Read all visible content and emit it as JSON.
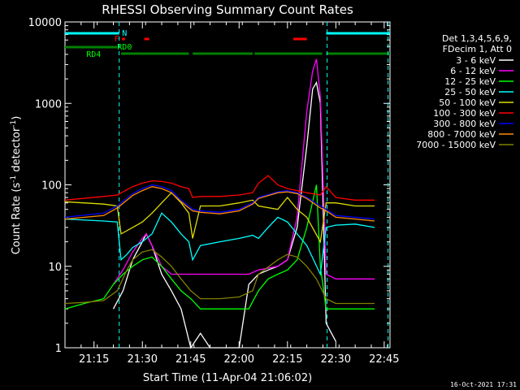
{
  "chart_data": {
    "type": "line",
    "title": "RHESSI Observing Summary Count Rates",
    "xlabel": "Start Time (11-Apr-04 21:06:02)",
    "ylabel_main": "Count Rate (s",
    "ylabel_sup1": "-1",
    "ylabel_mid": " detector",
    "ylabel_sup2": "-1",
    "ylabel_end": ")",
    "yscale": "log",
    "ylim": [
      1,
      10000
    ],
    "xlim_minutes": [
      21.1,
      22.78
    ],
    "xtick_labels": [
      "21:15",
      "21:30",
      "21:45",
      "22:00",
      "22:15",
      "22:30",
      "22:45"
    ],
    "xtick_values": [
      21.25,
      21.5,
      21.75,
      22.0,
      22.25,
      22.5,
      22.75
    ],
    "ytick_labels": [
      "1",
      "10",
      "100",
      "1000",
      "10000"
    ],
    "ytick_values": [
      1,
      10,
      100,
      1000,
      10000
    ],
    "legend_header": [
      "Det 1,3,4,5,6,9,",
      "FDecim 1, Att 0"
    ],
    "footer_date": "16-Oct-2021 17:31",
    "flags": {
      "N_label": "N",
      "F_label": "F",
      "RD0_label": "RD0",
      "RD4_label": "RD4",
      "night_color": "#00ffff",
      "flare_color": "#ff0000",
      "decim_color": "#008000",
      "night_segments": [
        [
          21.1,
          21.38
        ],
        [
          22.45,
          22.78
        ]
      ],
      "flare_segments": [
        [
          21.395,
          21.41
        ],
        [
          21.51,
          21.535
        ],
        [
          22.28,
          22.35
        ]
      ],
      "rd_segments": [
        [
          21.1,
          21.37
        ],
        [
          21.39,
          21.74
        ],
        [
          21.76,
          22.07
        ],
        [
          22.08,
          22.43
        ],
        [
          22.45,
          22.78
        ]
      ],
      "dashed_vlines": [
        21.38,
        22.455,
        22.77
      ]
    },
    "series": [
      {
        "name": "3 - 6 keV",
        "color": "#ffffff",
        "x": [
          21.1,
          21.2,
          21.3,
          21.35,
          21.4,
          21.45,
          21.5,
          21.52,
          21.55,
          21.6,
          21.65,
          21.7,
          21.75,
          21.8,
          21.85,
          21.9,
          22.0,
          22.05,
          22.1,
          22.15,
          22.2,
          22.25,
          22.3,
          22.35,
          22.38,
          22.4,
          22.42,
          22.45,
          22.5
        ],
        "y": [
          null,
          null,
          null,
          3,
          5,
          12,
          20,
          25,
          18,
          8,
          5,
          3,
          1,
          1.5,
          1,
          1,
          1,
          6,
          8,
          9,
          10,
          12,
          30,
          300,
          1500,
          1800,
          1000,
          2,
          1.2
        ]
      },
      {
        "name": "6 - 12 keV",
        "color": "#ff00ff",
        "x": [
          21.1,
          21.3,
          21.35,
          21.4,
          21.45,
          21.5,
          21.52,
          21.55,
          21.6,
          21.65,
          21.7,
          21.75,
          21.8,
          22.0,
          22.05,
          22.1,
          22.2,
          22.25,
          22.3,
          22.35,
          22.38,
          22.4,
          22.42,
          22.45,
          22.5,
          22.6,
          22.7
        ],
        "y": [
          null,
          null,
          6,
          9,
          15,
          22,
          25,
          18,
          10,
          8,
          8,
          8,
          8,
          8,
          8,
          9,
          10,
          12,
          40,
          800,
          2500,
          3500,
          1200,
          8,
          7,
          7,
          7
        ]
      },
      {
        "name": "12 - 25 keV",
        "color": "#00ff00",
        "x": [
          21.1,
          21.2,
          21.3,
          21.35,
          21.4,
          21.45,
          21.5,
          21.55,
          21.6,
          21.65,
          21.7,
          21.75,
          21.8,
          21.9,
          22.0,
          22.05,
          22.1,
          22.15,
          22.2,
          22.25,
          22.3,
          22.35,
          22.4,
          22.42,
          22.45,
          22.5,
          22.7
        ],
        "y": [
          3,
          3.5,
          4,
          6,
          8,
          10,
          12,
          13,
          10,
          7,
          5,
          4,
          3,
          3,
          3,
          3,
          5,
          7,
          8,
          9,
          12,
          30,
          100,
          10,
          3,
          3,
          3
        ]
      },
      {
        "name": "25 - 50 keV",
        "color": "#00ffff",
        "x": [
          21.1,
          21.3,
          21.37,
          21.39,
          21.42,
          21.45,
          21.5,
          21.55,
          21.6,
          21.65,
          21.7,
          21.74,
          21.76,
          21.8,
          21.9,
          22.0,
          22.07,
          22.1,
          22.15,
          22.2,
          22.25,
          22.3,
          22.35,
          22.42,
          22.45,
          22.5,
          22.6,
          22.7
        ],
        "y": [
          38,
          36,
          35,
          12,
          14,
          17,
          20,
          25,
          45,
          35,
          25,
          20,
          12,
          18,
          20,
          22,
          24,
          22,
          30,
          40,
          35,
          25,
          18,
          8,
          30,
          32,
          33,
          30
        ]
      },
      {
        "name": "50 - 100 keV",
        "color": "#dddd00",
        "x": [
          21.1,
          21.3,
          21.37,
          21.39,
          21.45,
          21.5,
          21.55,
          21.6,
          21.65,
          21.7,
          21.74,
          21.76,
          21.8,
          21.9,
          22.0,
          22.07,
          22.1,
          22.2,
          22.25,
          22.3,
          22.35,
          22.42,
          22.45,
          22.5,
          22.6,
          22.7
        ],
        "y": [
          62,
          58,
          55,
          25,
          30,
          35,
          45,
          60,
          80,
          60,
          45,
          22,
          55,
          55,
          60,
          65,
          55,
          50,
          70,
          50,
          40,
          20,
          60,
          60,
          55,
          55
        ]
      },
      {
        "name": "100 - 300 keV",
        "color": "#ff0000",
        "x": [
          21.1,
          21.3,
          21.37,
          21.45,
          21.5,
          21.55,
          21.6,
          21.65,
          21.7,
          21.74,
          21.76,
          21.8,
          21.9,
          22.0,
          22.07,
          22.1,
          22.15,
          22.2,
          22.25,
          22.3,
          22.35,
          22.42,
          22.45,
          22.5,
          22.6,
          22.7
        ],
        "y": [
          65,
          72,
          75,
          95,
          105,
          112,
          110,
          105,
          95,
          90,
          70,
          72,
          72,
          75,
          80,
          105,
          130,
          100,
          90,
          85,
          80,
          75,
          95,
          70,
          65,
          65
        ]
      },
      {
        "name": "300 - 800 keV",
        "color": "#0000ff",
        "x": [
          21.1,
          21.3,
          21.37,
          21.45,
          21.5,
          21.55,
          21.6,
          21.65,
          21.7,
          21.74,
          21.76,
          21.8,
          21.9,
          22.0,
          22.07,
          22.1,
          22.2,
          22.25,
          22.3,
          22.35,
          22.42,
          22.45,
          22.5,
          22.6,
          22.7
        ],
        "y": [
          40,
          45,
          55,
          78,
          90,
          100,
          95,
          85,
          65,
          55,
          50,
          48,
          46,
          50,
          60,
          70,
          82,
          85,
          80,
          70,
          55,
          50,
          42,
          40,
          38
        ]
      },
      {
        "name": "800 - 7000 keV",
        "color": "#ff8c00",
        "x": [
          21.1,
          21.3,
          21.37,
          21.45,
          21.5,
          21.55,
          21.6,
          21.65,
          21.7,
          21.74,
          21.76,
          21.8,
          21.9,
          22.0,
          22.07,
          22.1,
          22.2,
          22.25,
          22.3,
          22.35,
          22.42,
          22.45,
          22.5,
          22.6,
          22.7
        ],
        "y": [
          38,
          42,
          52,
          74,
          85,
          95,
          90,
          80,
          62,
          52,
          48,
          46,
          44,
          48,
          58,
          68,
          80,
          82,
          78,
          68,
          52,
          48,
          40,
          38,
          36
        ]
      },
      {
        "name": "7000 - 15000 keV",
        "color": "#808000",
        "x": [
          21.1,
          21.2,
          21.3,
          21.37,
          21.42,
          21.45,
          21.5,
          21.55,
          21.6,
          21.65,
          21.7,
          21.75,
          21.8,
          21.9,
          22.0,
          22.07,
          22.1,
          22.2,
          22.25,
          22.3,
          22.35,
          22.4,
          22.45,
          22.5,
          22.7
        ],
        "y": [
          3.5,
          3.6,
          3.8,
          5,
          9,
          12,
          15,
          16,
          13,
          10,
          7,
          5,
          4,
          4,
          4.2,
          5,
          8,
          12,
          14,
          13,
          10,
          7,
          4,
          3.5,
          3.5
        ]
      }
    ]
  }
}
